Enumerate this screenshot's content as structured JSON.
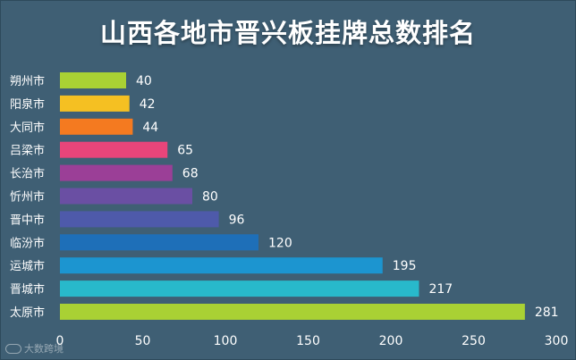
{
  "chart_data": {
    "type": "bar",
    "orientation": "horizontal",
    "title": "山西各地市晋兴板挂牌总数排名",
    "categories": [
      "朔州市",
      "阳泉市",
      "大同市",
      "吕梁市",
      "长治市",
      "忻州市",
      "晋中市",
      "临汾市",
      "运城市",
      "晋城市",
      "太原市"
    ],
    "values": [
      40,
      42,
      44,
      65,
      68,
      80,
      96,
      120,
      195,
      217,
      281
    ],
    "colors": [
      "#a9d134",
      "#f5c022",
      "#f47a20",
      "#e8457a",
      "#9b3f97",
      "#6a4fa3",
      "#4e5aaa",
      "#1e6fb8",
      "#1c95d0",
      "#28b9cb",
      "#a9d134"
    ],
    "xticks": [
      0,
      50,
      100,
      150,
      200,
      250,
      300
    ],
    "xlim": [
      0,
      300
    ],
    "xlabel": "",
    "ylabel": "",
    "grid": false,
    "data_labels": true
  },
  "watermark": {
    "text": "大数跨境",
    "icon": "logo-icon"
  },
  "background_color": "#3f5f74"
}
